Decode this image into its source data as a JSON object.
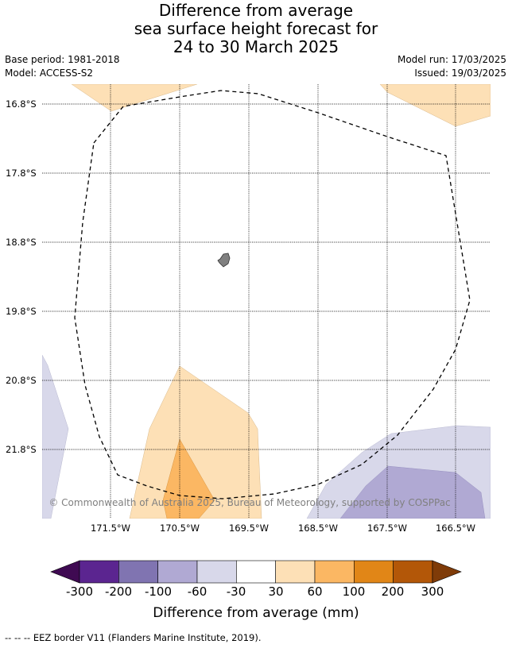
{
  "title": {
    "line1": "Difference from average",
    "line2": "sea surface height forecast for",
    "line3": "24 to 30 March 2025"
  },
  "meta": {
    "base_period": "Base period: 1981-2018",
    "model": "Model: ACCESS-S2",
    "model_run": "Model run: 17/03/2025",
    "issued": "Issued: 19/03/2025"
  },
  "map": {
    "lat_labels": [
      "16.8°S",
      "17.8°S",
      "18.8°S",
      "19.8°S",
      "20.8°S",
      "21.8°S"
    ],
    "lon_labels": [
      "171.5°W",
      "170.5°W",
      "169.5°W",
      "168.5°W",
      "167.5°W",
      "166.5°W"
    ],
    "copyright": "© Commonwealth of Australia 2025, Bureau of Meteorology, supported by COSPPac"
  },
  "colorbar": {
    "ticks": [
      "-300",
      "-200",
      "-100",
      "-60",
      "-30",
      "30",
      "60",
      "100",
      "200",
      "300"
    ],
    "colors": [
      "#3f0a52",
      "#5b2590",
      "#8074b1",
      "#b0a9d3",
      "#d8d8ea",
      "#ffffff",
      "#fde0b6",
      "#fbb763",
      "#e18617",
      "#b35708",
      "#7f3b08"
    ],
    "label": "Difference from average (mm)"
  },
  "footer": "--  --  -- EEZ border V11 (Flanders Marine Institute, 2019)."
}
